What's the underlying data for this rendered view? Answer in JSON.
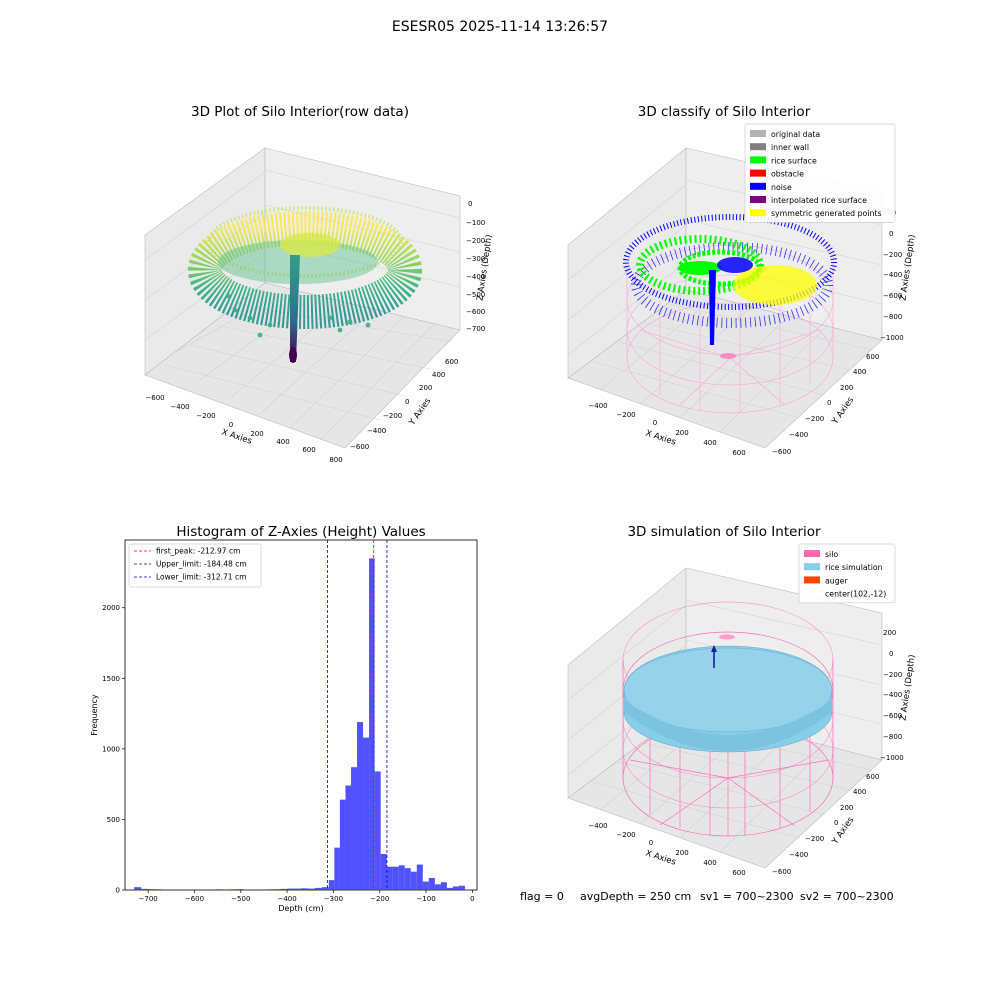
{
  "figure": {
    "suptitle": "ESESR05 2025-11-14 13:26:57",
    "status_line": {
      "flag": "flag = 0",
      "avg_depth": "avgDepth = 250 cm",
      "sv1": "sv1 = 700~2300",
      "sv2": "sv2 = 700~2300"
    }
  },
  "colors": {
    "original": "#b3b3b3",
    "inner_wall": "#808080",
    "rice_surface": "#00ff00",
    "obstacle": "#ff0000",
    "noise": "#0000ff",
    "interpolated": "#800080",
    "symmetric": "#ffff00",
    "silo": "#ff69b4",
    "rice_sim": "#87ceeb",
    "auger": "#ff4500",
    "hist": "#3333ff"
  },
  "chart_data": [
    {
      "type": "scatter",
      "title": "3D Plot of Silo Interior(row data)",
      "xlabel": "X Axies",
      "ylabel": "Y Axies",
      "zlabel": "Z Axies (Depth)",
      "x_ticks": [
        "−600",
        "−400",
        "−200",
        "0",
        "200",
        "400",
        "600",
        "800"
      ],
      "y_ticks": [
        "−600",
        "−400",
        "−200",
        "0",
        "200",
        "400",
        "600"
      ],
      "z_ticks": [
        "0",
        "−100",
        "−200",
        "−300",
        "−400",
        "−500",
        "−600",
        "−700"
      ]
    },
    {
      "type": "scatter",
      "title": "3D classify of Silo Interior",
      "xlabel": "X Axies",
      "ylabel": "Y Axies",
      "zlabel": "Z Axies (Depth)",
      "x_ticks": [
        "−400",
        "−200",
        "0",
        "200",
        "400",
        "600"
      ],
      "y_ticks": [
        "−600",
        "−400",
        "−200",
        "0",
        "200",
        "400",
        "600"
      ],
      "z_ticks": [
        "200",
        "0",
        "−200",
        "−400",
        "−600",
        "−800",
        "−1000"
      ],
      "legend": [
        {
          "label": "original data",
          "color": "#b3b3b3"
        },
        {
          "label": "inner wall",
          "color": "#808080"
        },
        {
          "label": "rice surface",
          "color": "#00ff00"
        },
        {
          "label": "obstacle",
          "color": "#ff0000"
        },
        {
          "label": "noise",
          "color": "#0000ff"
        },
        {
          "label": "interpolated rice surface",
          "color": "#800080"
        },
        {
          "label": "symmetric generated points",
          "color": "#ffff00"
        }
      ]
    },
    {
      "type": "bar",
      "title": "Histogram of Z-Axies (Height) Values",
      "xlabel": "Depth (cm)",
      "ylabel": "Frequency",
      "xlim": [
        -750,
        10
      ],
      "ylim": [
        0,
        2480
      ],
      "x_ticks": [
        -700,
        -600,
        -500,
        -400,
        -300,
        -200,
        -100,
        0
      ],
      "y_ticks": [
        0,
        500,
        1000,
        1500,
        2000
      ],
      "bins": [
        {
          "x0": -730,
          "x1": -715,
          "v": 20
        },
        {
          "x0": -715,
          "x1": -700,
          "v": 8
        },
        {
          "x0": -700,
          "x1": -685,
          "v": 6
        },
        {
          "x0": -685,
          "x1": -670,
          "v": 5
        },
        {
          "x0": -570,
          "x1": -555,
          "v": 4
        },
        {
          "x0": -555,
          "x1": -540,
          "v": 5
        },
        {
          "x0": -540,
          "x1": -525,
          "v": 4
        },
        {
          "x0": -525,
          "x1": -510,
          "v": 5
        },
        {
          "x0": -510,
          "x1": -495,
          "v": 6
        },
        {
          "x0": -460,
          "x1": -445,
          "v": 4
        },
        {
          "x0": -445,
          "x1": -430,
          "v": 5
        },
        {
          "x0": -430,
          "x1": -415,
          "v": 6
        },
        {
          "x0": -415,
          "x1": -400,
          "v": 8
        },
        {
          "x0": -400,
          "x1": -385,
          "v": 10
        },
        {
          "x0": -385,
          "x1": -370,
          "v": 10
        },
        {
          "x0": -370,
          "x1": -355,
          "v": 12
        },
        {
          "x0": -355,
          "x1": -340,
          "v": 10
        },
        {
          "x0": -340,
          "x1": -325,
          "v": 15
        },
        {
          "x0": -325,
          "x1": -310,
          "v": 20
        },
        {
          "x0": -310,
          "x1": -298,
          "v": 70
        },
        {
          "x0": -298,
          "x1": -286,
          "v": 300
        },
        {
          "x0": -286,
          "x1": -274,
          "v": 640
        },
        {
          "x0": -274,
          "x1": -262,
          "v": 740
        },
        {
          "x0": -262,
          "x1": -249,
          "v": 870
        },
        {
          "x0": -249,
          "x1": -236,
          "v": 1190
        },
        {
          "x0": -236,
          "x1": -223,
          "v": 1080
        },
        {
          "x0": -223,
          "x1": -211,
          "v": 2350
        },
        {
          "x0": -211,
          "x1": -198,
          "v": 840
        },
        {
          "x0": -198,
          "x1": -185,
          "v": 255
        },
        {
          "x0": -185,
          "x1": -172,
          "v": 165
        },
        {
          "x0": -172,
          "x1": -159,
          "v": 165
        },
        {
          "x0": -159,
          "x1": -146,
          "v": 175
        },
        {
          "x0": -146,
          "x1": -133,
          "v": 155
        },
        {
          "x0": -133,
          "x1": -120,
          "v": 130
        },
        {
          "x0": -120,
          "x1": -107,
          "v": 180
        },
        {
          "x0": -107,
          "x1": -94,
          "v": 60
        },
        {
          "x0": -94,
          "x1": -81,
          "v": 85
        },
        {
          "x0": -81,
          "x1": -68,
          "v": 40
        },
        {
          "x0": -68,
          "x1": -55,
          "v": 55
        },
        {
          "x0": -55,
          "x1": -42,
          "v": 15
        },
        {
          "x0": -42,
          "x1": -29,
          "v": 25
        },
        {
          "x0": -29,
          "x1": -16,
          "v": 30
        }
      ],
      "vlines": [
        {
          "x": -212.97,
          "color": "#ff0000",
          "label": "first_peak: -212.97 cm"
        },
        {
          "x": -184.48,
          "color": "#0000cc",
          "label": "Upper_limit: -184.48 cm"
        },
        {
          "x": -312.71,
          "color": "#0000cc",
          "label": "Lower_limit: -312.71 cm"
        }
      ],
      "grid": false,
      "legend_position": "top-left"
    },
    {
      "type": "scatter",
      "title": "3D simulation of Silo Interior",
      "xlabel": "X Axies",
      "ylabel": "Y Axies",
      "zlabel": "Z Axies (Depth)",
      "x_ticks": [
        "−400",
        "−200",
        "0",
        "200",
        "400",
        "600"
      ],
      "y_ticks": [
        "−600",
        "−400",
        "−200",
        "0",
        "200",
        "400",
        "600"
      ],
      "z_ticks": [
        "200",
        "0",
        "−200",
        "−400",
        "−600",
        "−800",
        "−1000"
      ],
      "legend": [
        {
          "label": "silo",
          "color": "#ff69b4"
        },
        {
          "label": "rice simulation",
          "color": "#87ceeb"
        },
        {
          "label": "auger",
          "color": "#ff4500"
        },
        {
          "label": "center(102,-12)",
          "color": ""
        }
      ]
    }
  ]
}
